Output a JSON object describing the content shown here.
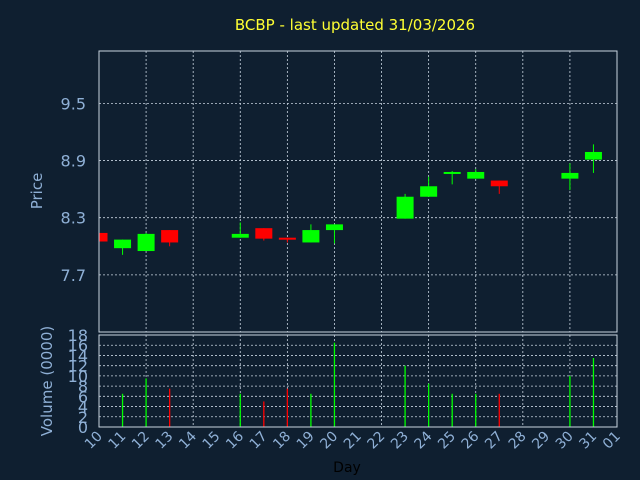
{
  "chart_data": {
    "type": "candlestick",
    "title": "BCBP - last updated 31/03/2026",
    "price_axis": {
      "label": "Price",
      "ylim": [
        7.1,
        10.05
      ],
      "ticks": [
        "7.7",
        "8.3",
        "8.9",
        "9.5"
      ]
    },
    "volume_axis": {
      "label": "Volume (0000)",
      "ylim": [
        0,
        18
      ],
      "ticks": [
        "0",
        "2",
        "4",
        "6",
        "8",
        "10",
        "12",
        "14",
        "16",
        "18"
      ]
    },
    "x_axis": {
      "label": "Day",
      "ticks": [
        "10",
        "11",
        "12",
        "13",
        "14",
        "15",
        "16",
        "17",
        "18",
        "19",
        "20",
        "21",
        "22",
        "23",
        "24",
        "25",
        "26",
        "27",
        "28",
        "29",
        "30",
        "31",
        "01"
      ]
    },
    "grid": true,
    "colors": {
      "up": "#00ff00",
      "down": "#ff0000",
      "title": "#ffff33",
      "text": "#8fb0d6",
      "background": "#0f1f30"
    },
    "candles": [
      {
        "day": "10",
        "open": 8.14,
        "close": 8.05,
        "high": 8.14,
        "low": 8.05
      },
      {
        "day": "11",
        "open": 7.98,
        "close": 8.07,
        "high": 8.07,
        "low": 7.91
      },
      {
        "day": "12",
        "open": 7.95,
        "close": 8.13,
        "high": 8.14,
        "low": 7.95
      },
      {
        "day": "13",
        "open": 8.17,
        "close": 8.04,
        "high": 8.17,
        "low": 8.0
      },
      {
        "day": "16",
        "open": 8.09,
        "close": 8.13,
        "high": 8.25,
        "low": 8.09
      },
      {
        "day": "17",
        "open": 8.19,
        "close": 8.08,
        "high": 8.19,
        "low": 8.06
      },
      {
        "day": "18",
        "open": 8.09,
        "close": 8.07,
        "high": 8.09,
        "low": 8.04
      },
      {
        "day": "19",
        "open": 8.04,
        "close": 8.17,
        "high": 8.23,
        "low": 8.04
      },
      {
        "day": "20",
        "open": 8.17,
        "close": 8.23,
        "high": 8.23,
        "low": 8.03
      },
      {
        "day": "23",
        "open": 8.29,
        "close": 8.52,
        "high": 8.55,
        "low": 8.29
      },
      {
        "day": "24",
        "open": 8.52,
        "close": 8.63,
        "high": 8.73,
        "low": 8.52
      },
      {
        "day": "25",
        "open": 8.76,
        "close": 8.78,
        "high": 8.79,
        "low": 8.65
      },
      {
        "day": "26",
        "open": 8.71,
        "close": 8.78,
        "high": 8.81,
        "low": 8.71
      },
      {
        "day": "27",
        "open": 8.69,
        "close": 8.63,
        "high": 8.69,
        "low": 8.55
      },
      {
        "day": "30",
        "open": 8.71,
        "close": 8.77,
        "high": 8.87,
        "low": 8.59
      },
      {
        "day": "31",
        "open": 8.91,
        "close": 8.99,
        "high": 9.07,
        "low": 8.77
      }
    ],
    "volume": [
      {
        "day": "11",
        "value": 6.5,
        "direction": "up"
      },
      {
        "day": "12",
        "value": 9.5,
        "direction": "up"
      },
      {
        "day": "13",
        "value": 7.5,
        "direction": "down"
      },
      {
        "day": "16",
        "value": 6.5,
        "direction": "up"
      },
      {
        "day": "17",
        "value": 5.0,
        "direction": "down"
      },
      {
        "day": "18",
        "value": 7.5,
        "direction": "down"
      },
      {
        "day": "19",
        "value": 6.5,
        "direction": "up"
      },
      {
        "day": "20",
        "value": 16.5,
        "direction": "up"
      },
      {
        "day": "23",
        "value": 12.0,
        "direction": "up"
      },
      {
        "day": "24",
        "value": 8.5,
        "direction": "up"
      },
      {
        "day": "25",
        "value": 6.5,
        "direction": "up"
      },
      {
        "day": "26",
        "value": 6.5,
        "direction": "up"
      },
      {
        "day": "27",
        "value": 6.5,
        "direction": "down"
      },
      {
        "day": "30",
        "value": 10.0,
        "direction": "up"
      },
      {
        "day": "31",
        "value": 13.5,
        "direction": "up"
      }
    ]
  }
}
